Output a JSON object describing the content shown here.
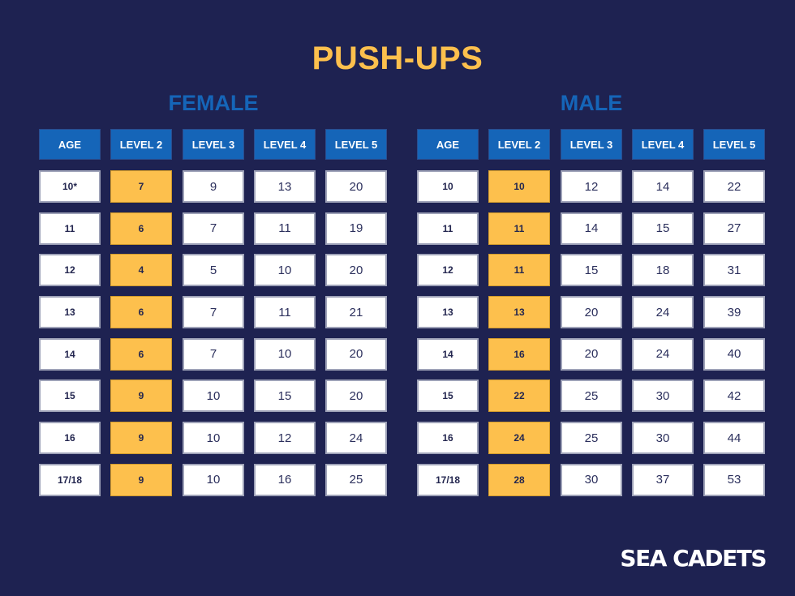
{
  "title": "PUSH-UPS",
  "columns": [
    "AGE",
    "LEVEL 2",
    "LEVEL 3",
    "LEVEL 4",
    "LEVEL 5"
  ],
  "female": {
    "heading": "FEMALE",
    "rows": [
      [
        "10*",
        "7",
        "9",
        "13",
        "20"
      ],
      [
        "11",
        "6",
        "7",
        "11",
        "19"
      ],
      [
        "12",
        "4",
        "5",
        "10",
        "20"
      ],
      [
        "13",
        "6",
        "7",
        "11",
        "21"
      ],
      [
        "14",
        "6",
        "7",
        "10",
        "20"
      ],
      [
        "15",
        "9",
        "10",
        "15",
        "20"
      ],
      [
        "16",
        "9",
        "10",
        "12",
        "24"
      ],
      [
        "17/18",
        "9",
        "10",
        "16",
        "25"
      ]
    ]
  },
  "male": {
    "heading": "MALE",
    "rows": [
      [
        "10",
        "10",
        "12",
        "14",
        "22"
      ],
      [
        "11",
        "11",
        "14",
        "15",
        "27"
      ],
      [
        "12",
        "11",
        "15",
        "18",
        "31"
      ],
      [
        "13",
        "13",
        "20",
        "24",
        "39"
      ],
      [
        "14",
        "16",
        "20",
        "24",
        "40"
      ],
      [
        "15",
        "22",
        "25",
        "30",
        "42"
      ],
      [
        "16",
        "24",
        "25",
        "30",
        "44"
      ],
      [
        "17/18",
        "28",
        "30",
        "37",
        "53"
      ]
    ]
  },
  "logo": "SEA CADETS",
  "colors": {
    "background": "#1e2251",
    "title": "#fdc04d",
    "section_heading": "#1565b8",
    "header_cell": "#1565b8",
    "level2_highlight": "#fdc04d",
    "cell": "#ffffff"
  }
}
